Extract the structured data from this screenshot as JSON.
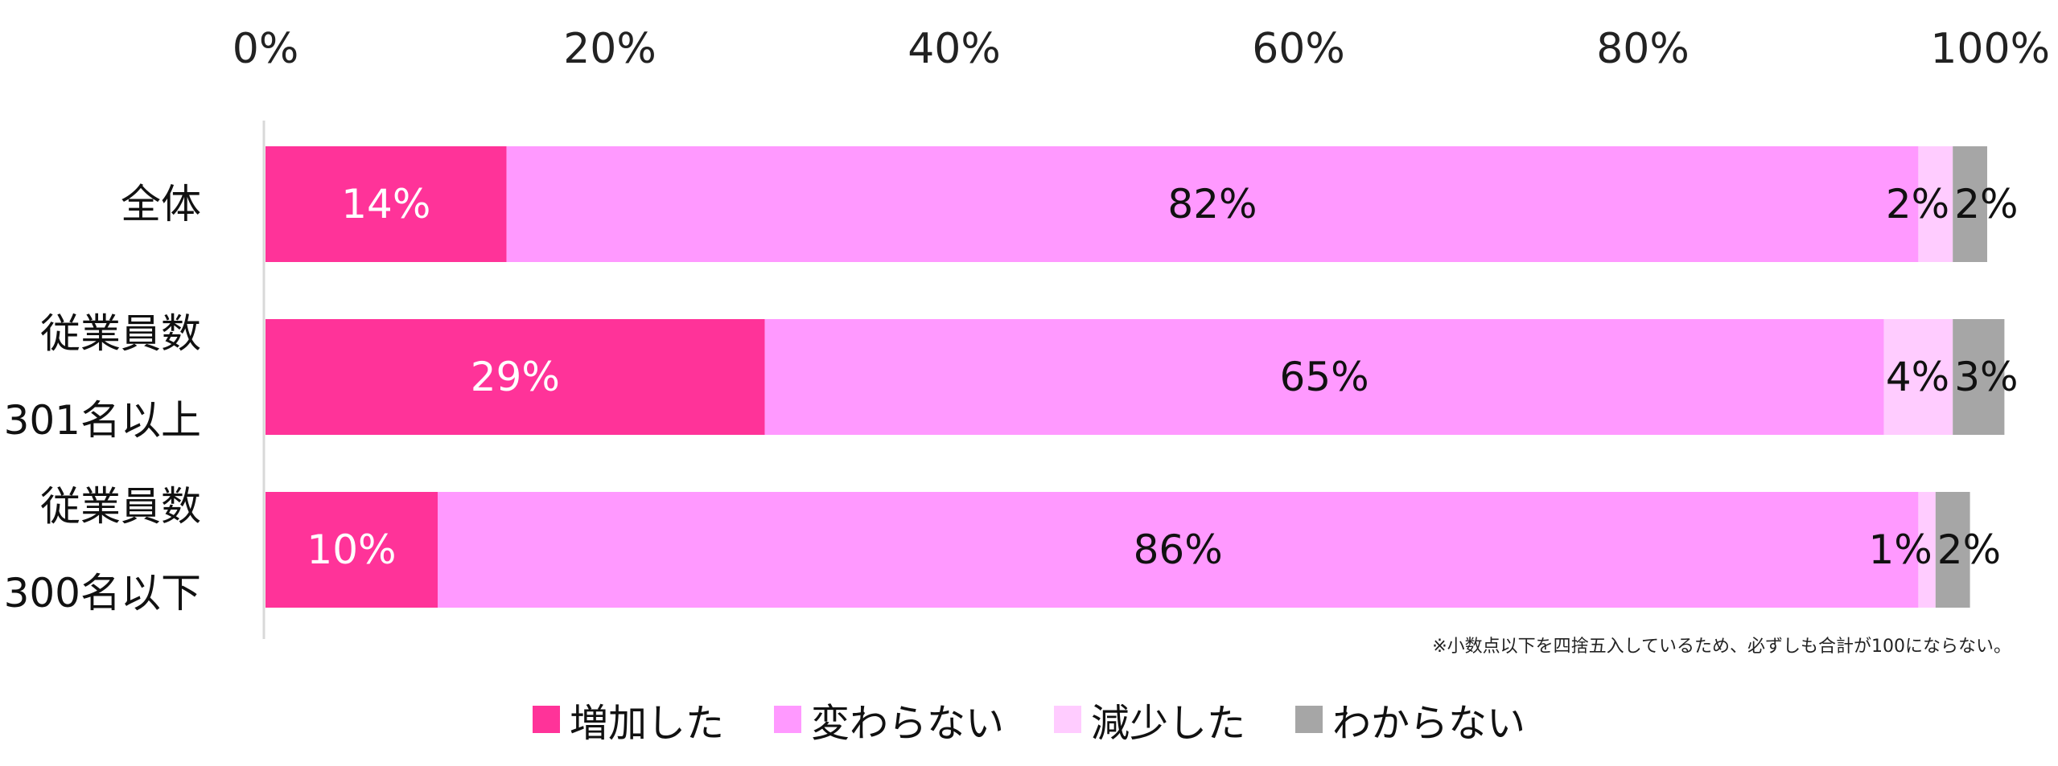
{
  "chart_data": {
    "type": "bar",
    "orientation": "horizontal",
    "stacked": true,
    "xlim": [
      0,
      100
    ],
    "x_ticks": [
      "0%",
      "20%",
      "40%",
      "60%",
      "80%",
      "100%"
    ],
    "categories": [
      [
        "全体"
      ],
      [
        "従業員数",
        "301名以上"
      ],
      [
        "従業員数",
        "300名以下"
      ]
    ],
    "series": [
      {
        "name": "増加した",
        "color": "#ff3399",
        "label_color": "#ffffff",
        "values": [
          14,
          29,
          10
        ],
        "labels": [
          "14%",
          "29%",
          "10%"
        ]
      },
      {
        "name": "変わらない",
        "color": "#ff99ff",
        "label_color": "#111111",
        "values": [
          82,
          65,
          86
        ],
        "labels": [
          "82%",
          "65%",
          "86%"
        ]
      },
      {
        "name": "減少した",
        "color": "#ffccff",
        "label_color": "#111111",
        "values": [
          2,
          4,
          1
        ],
        "labels": [
          "2%",
          "4%",
          "1%"
        ]
      },
      {
        "name": "わからない",
        "color": "#a6a6a6",
        "label_color": "#111111",
        "values": [
          2,
          3,
          2
        ],
        "labels": [
          "2%",
          "3%",
          "2%"
        ]
      }
    ],
    "legend_position": "bottom",
    "grid": false,
    "note": "※小数点以下を四捨五入しているため、必ずしも合計が100にならない。"
  }
}
